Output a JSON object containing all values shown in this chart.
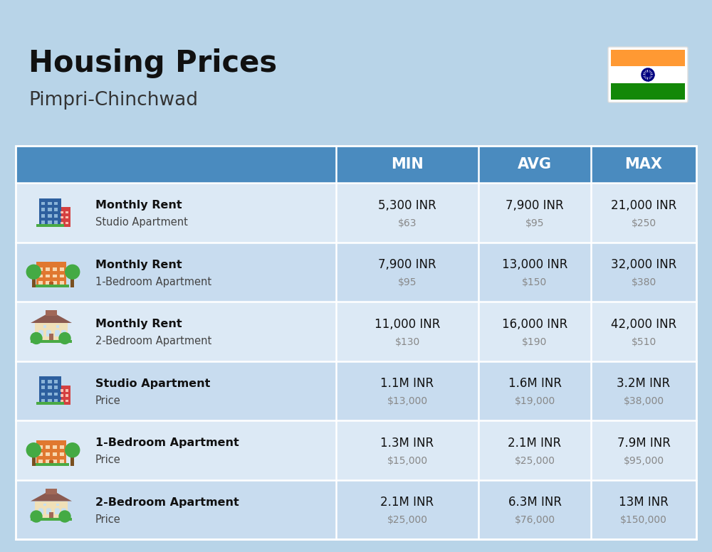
{
  "title": "Housing Prices",
  "subtitle": "Pimpri-Chinchwad",
  "background_color": "#b8d4e8",
  "header_bg_color": "#4a8bbf",
  "header_text_color": "#ffffff",
  "row_bg_colors": [
    "#dce9f5",
    "#c8dcef"
  ],
  "col_header_labels": [
    "MIN",
    "AVG",
    "MAX"
  ],
  "rows": [
    {
      "icon_type": "blue_studio",
      "label_bold": "Monthly Rent",
      "label_light": "Studio Apartment",
      "min_main": "5,300 INR",
      "min_sub": "$63",
      "avg_main": "7,900 INR",
      "avg_sub": "$95",
      "max_main": "21,000 INR",
      "max_sub": "$250"
    },
    {
      "icon_type": "orange_apt",
      "label_bold": "Monthly Rent",
      "label_light": "1-Bedroom Apartment",
      "min_main": "7,900 INR",
      "min_sub": "$95",
      "avg_main": "13,000 INR",
      "avg_sub": "$150",
      "max_main": "32,000 INR",
      "max_sub": "$380"
    },
    {
      "icon_type": "beige_house",
      "label_bold": "Monthly Rent",
      "label_light": "2-Bedroom Apartment",
      "min_main": "11,000 INR",
      "min_sub": "$130",
      "avg_main": "16,000 INR",
      "avg_sub": "$190",
      "max_main": "42,000 INR",
      "max_sub": "$510"
    },
    {
      "icon_type": "blue_studio",
      "label_bold": "Studio Apartment",
      "label_light": "Price",
      "min_main": "1.1M INR",
      "min_sub": "$13,000",
      "avg_main": "1.6M INR",
      "avg_sub": "$19,000",
      "max_main": "3.2M INR",
      "max_sub": "$38,000"
    },
    {
      "icon_type": "orange_apt",
      "label_bold": "1-Bedroom Apartment",
      "label_light": "Price",
      "min_main": "1.3M INR",
      "min_sub": "$15,000",
      "avg_main": "2.1M INR",
      "avg_sub": "$25,000",
      "max_main": "7.9M INR",
      "max_sub": "$95,000"
    },
    {
      "icon_type": "beige_house",
      "label_bold": "2-Bedroom Apartment",
      "label_light": "Price",
      "min_main": "2.1M INR",
      "min_sub": "$25,000",
      "avg_main": "6.3M INR",
      "avg_sub": "$76,000",
      "max_main": "13M INR",
      "max_sub": "$150,000"
    }
  ]
}
